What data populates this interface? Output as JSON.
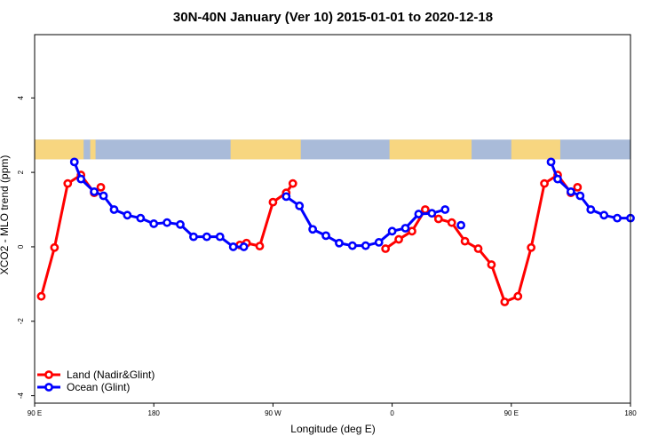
{
  "chart_data": {
    "type": "line",
    "title": "30N-40N January (Ver 10)   2015-01-01 to 2020-12-18",
    "xlabel": "Longitude (deg E)",
    "ylabel": "XCO2 - MLO trend (ppm)",
    "xlim": [
      90,
      540
    ],
    "ylim": [
      -4.2,
      5.7
    ],
    "x_ticks": [
      {
        "value": 90,
        "label": "90 E"
      },
      {
        "value": 180,
        "label": "180"
      },
      {
        "value": 270,
        "label": "90 W"
      },
      {
        "value": 360,
        "label": "0"
      },
      {
        "value": 450,
        "label": "90 E"
      },
      {
        "value": 540,
        "label": "180"
      }
    ],
    "y_ticks": [
      {
        "value": -4,
        "label": "-4"
      },
      {
        "value": -2,
        "label": "-2"
      },
      {
        "value": 0,
        "label": "0"
      },
      {
        "value": 2,
        "label": "2"
      },
      {
        "value": 4,
        "label": "4"
      }
    ],
    "map_strip": {
      "y_range": [
        2.35,
        2.88
      ],
      "ocean_color": "#a9bbd9",
      "land_color": "#f7d680"
    },
    "legend": "bottom-left",
    "series": [
      {
        "name": "Land (Nadir&Glint)",
        "color": "#ff0000",
        "segments": [
          [
            [
              95,
              -1.33
            ],
            [
              105,
              -0.02
            ],
            [
              115,
              1.7
            ],
            [
              125,
              1.93
            ],
            [
              135,
              1.45
            ],
            [
              140,
              1.6
            ]
          ],
          [
            [
              245,
              0.05
            ],
            [
              250,
              0.1
            ],
            [
              260,
              0.02
            ],
            [
              270,
              1.2
            ],
            [
              280,
              1.45
            ],
            [
              285,
              1.7
            ]
          ],
          [
            [
              355,
              -0.05
            ],
            [
              365,
              0.2
            ],
            [
              375,
              0.42
            ],
            [
              385,
              1.0
            ],
            [
              395,
              0.75
            ],
            [
              405,
              0.65
            ],
            [
              415,
              0.15
            ],
            [
              425,
              -0.05
            ],
            [
              435,
              -0.48
            ],
            [
              445,
              -1.48
            ],
            [
              455,
              -1.33
            ],
            [
              465,
              -0.02
            ],
            [
              475,
              1.7
            ],
            [
              485,
              1.93
            ],
            [
              495,
              1.45
            ],
            [
              500,
              1.6
            ]
          ]
        ]
      },
      {
        "name": "Ocean (Glint)",
        "color": "#0000ff",
        "segments": [
          [
            [
              120,
              2.28
            ],
            [
              125,
              1.82
            ],
            [
              135,
              1.48
            ],
            [
              142,
              1.37
            ],
            [
              150,
              1.0
            ],
            [
              160,
              0.85
            ],
            [
              170,
              0.77
            ],
            [
              180,
              0.62
            ],
            [
              190,
              0.65
            ],
            [
              200,
              0.6
            ],
            [
              210,
              0.27
            ],
            [
              220,
              0.27
            ],
            [
              230,
              0.27
            ],
            [
              240,
              0.0
            ],
            [
              248,
              0.0
            ]
          ],
          [
            [
              280,
              1.35
            ],
            [
              290,
              1.1
            ],
            [
              300,
              0.47
            ],
            [
              310,
              0.3
            ],
            [
              320,
              0.1
            ],
            [
              330,
              0.03
            ],
            [
              340,
              0.03
            ],
            [
              350,
              0.12
            ],
            [
              360,
              0.42
            ],
            [
              370,
              0.5
            ],
            [
              380,
              0.88
            ],
            [
              390,
              0.9
            ],
            [
              400,
              1.0
            ]
          ],
          [
            [
              412,
              0.58
            ]
          ],
          [
            [
              480,
              2.28
            ],
            [
              485,
              1.82
            ],
            [
              495,
              1.48
            ],
            [
              502,
              1.37
            ],
            [
              510,
              1.0
            ],
            [
              520,
              0.85
            ],
            [
              530,
              0.77
            ],
            [
              540,
              0.77
            ]
          ]
        ]
      }
    ]
  }
}
